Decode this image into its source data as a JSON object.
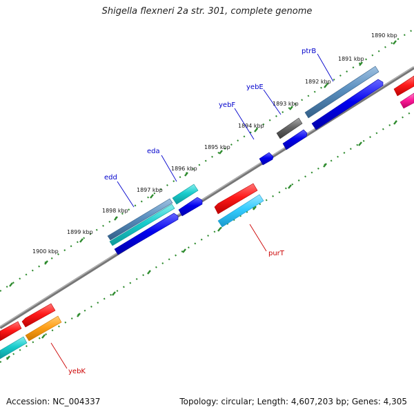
{
  "title": "Shigella flexneri 2a str. 301, complete genome",
  "footer": {
    "accession": "Accession: NC_004337",
    "topology": "Topology: circular; Length: 4,607,203 bp; Genes: 4,305"
  },
  "ticks": [
    "1890 kbp",
    "1891 kbp",
    "1892 kbp",
    "1893 kbp",
    "1894 kbp",
    "1895 kbp",
    "1896 kbp",
    "1897 kbp",
    "1898 kbp",
    "1899 kbp",
    "1900 kbp"
  ],
  "genes_upper": [
    "ptrB",
    "yebE",
    "yebF",
    "eda",
    "edd"
  ],
  "genes_lower": [
    "purT",
    "yebK"
  ],
  "colors": {
    "gene_label_upper": "#0000cc",
    "gene_label_lower": "#cc0000",
    "backbone": "#888888",
    "tick": "#2e8b2e",
    "red": "#ff1a1a",
    "blue": "#0000ee",
    "cyan": "#19cccc",
    "steelblue": "#5a8fbf",
    "lightblue": "#33ccff",
    "orange": "#ffa11a",
    "gray": "#666666",
    "magenta": "#ff1a99"
  }
}
